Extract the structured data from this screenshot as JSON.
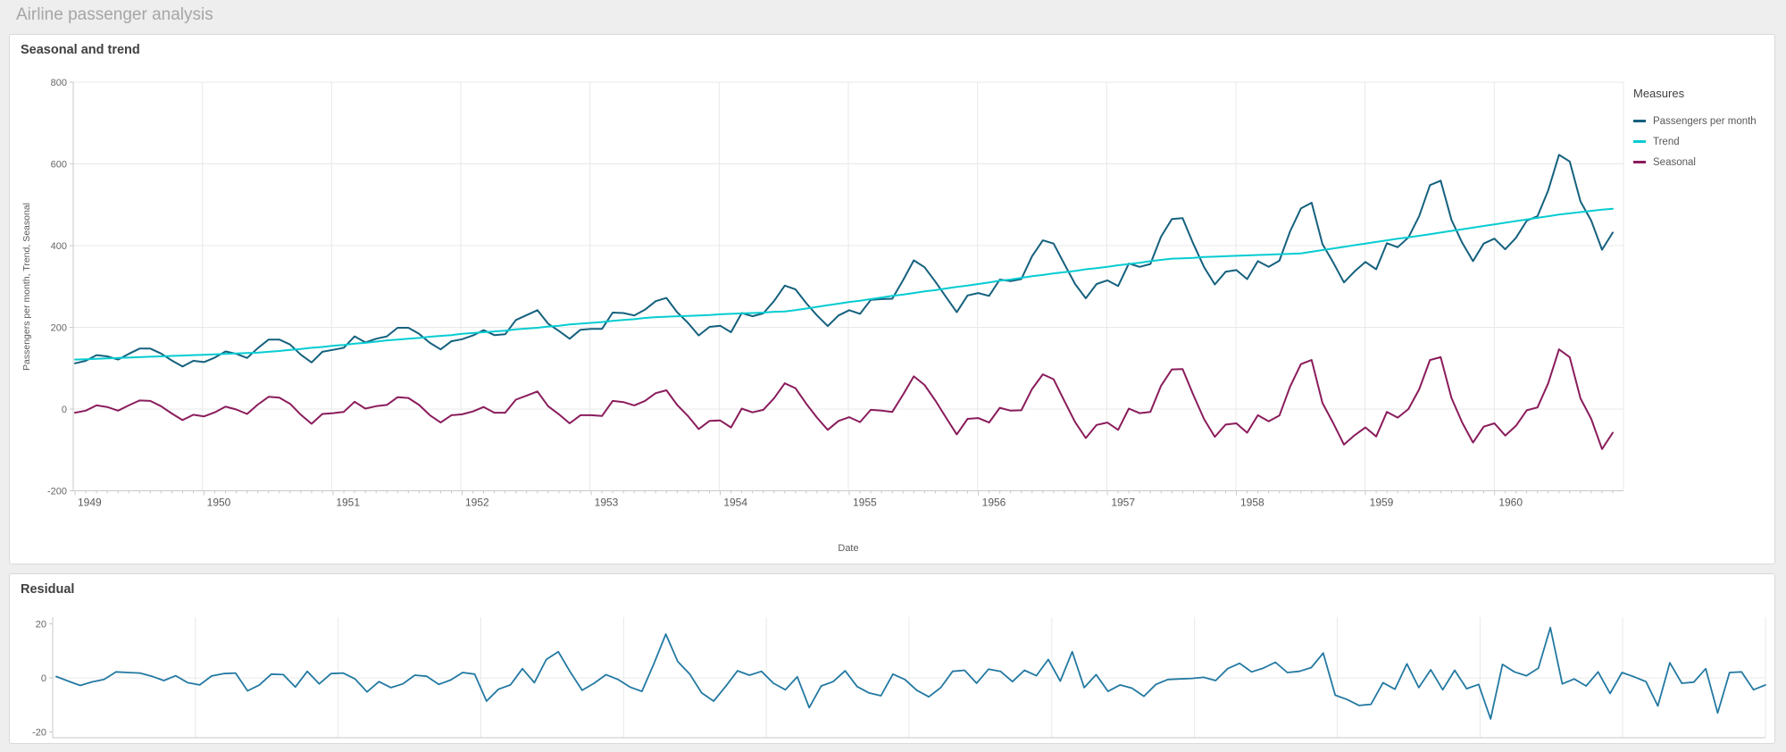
{
  "sheet": {
    "title": "Airline passenger analysis"
  },
  "chart_data": [
    {
      "type": "line",
      "title": "Seasonal and trend",
      "xlabel": "Date",
      "ylabel": "Passengers per month, Trend, Seasonal",
      "legend_title": "Measures",
      "legend_position": "right",
      "grid": true,
      "ylim": [
        -200,
        800
      ],
      "yticks": [
        800,
        600,
        400,
        200,
        0,
        -200
      ],
      "x_years": [
        1949,
        1950,
        1951,
        1952,
        1953,
        1954,
        1955,
        1956,
        1957,
        1958,
        1959,
        1960
      ],
      "points_per_year": 12,
      "series": [
        {
          "name": "Passengers per month",
          "color": "#15617e",
          "values": [
            112,
            118,
            132,
            129,
            121,
            135,
            148,
            148,
            136,
            119,
            104,
            118,
            115,
            126,
            141,
            135,
            125,
            149,
            170,
            170,
            158,
            133,
            114,
            140,
            145,
            150,
            178,
            163,
            172,
            178,
            199,
            199,
            184,
            162,
            146,
            166,
            171,
            180,
            193,
            181,
            183,
            218,
            230,
            242,
            209,
            191,
            172,
            194,
            196,
            196,
            236,
            235,
            229,
            243,
            264,
            272,
            237,
            211,
            180,
            201,
            204,
            188,
            235,
            227,
            234,
            264,
            302,
            293,
            259,
            229,
            203,
            229,
            242,
            233,
            267,
            269,
            270,
            315,
            364,
            347,
            312,
            274,
            237,
            278,
            284,
            277,
            317,
            313,
            318,
            374,
            413,
            405,
            355,
            306,
            271,
            306,
            315,
            301,
            356,
            348,
            355,
            422,
            465,
            467,
            404,
            347,
            305,
            336,
            340,
            318,
            362,
            348,
            363,
            435,
            491,
            505,
            404,
            359,
            310,
            337,
            360,
            342,
            406,
            396,
            420,
            472,
            548,
            559,
            463,
            407,
            362,
            405,
            417,
            391,
            419,
            461,
            472,
            535,
            622,
            606,
            508,
            461,
            390,
            432
          ]
        },
        {
          "name": "Trend",
          "color": "#06ccd2",
          "values": [
            121,
            122,
            123,
            124,
            125,
            126,
            127,
            128,
            129,
            130,
            131,
            132,
            133,
            134,
            135,
            136,
            137,
            138,
            140,
            142,
            145,
            147,
            150,
            152,
            155,
            157,
            160,
            162,
            165,
            168,
            170,
            172,
            174,
            177,
            179,
            181,
            184,
            186,
            188,
            190,
            192,
            195,
            197,
            199,
            202,
            204,
            207,
            209,
            211,
            213,
            216,
            218,
            220,
            223,
            225,
            226,
            227,
            228,
            229,
            230,
            232,
            233,
            234,
            235,
            236,
            238,
            239,
            242,
            246,
            250,
            254,
            258,
            262,
            265,
            269,
            273,
            277,
            280,
            284,
            288,
            291,
            295,
            299,
            302,
            306,
            310,
            314,
            317,
            321,
            325,
            328,
            332,
            335,
            338,
            342,
            345,
            348,
            352,
            355,
            358,
            362,
            365,
            368,
            369,
            370,
            372,
            373,
            374,
            375,
            376,
            377,
            378,
            379,
            380,
            381,
            385,
            389,
            393,
            397,
            401,
            405,
            409,
            413,
            417,
            420,
            424,
            428,
            432,
            436,
            440,
            444,
            448,
            452,
            456,
            460,
            464,
            468,
            472,
            476,
            479,
            482,
            485,
            488,
            490
          ]
        },
        {
          "name": "Seasonal",
          "color": "#8a1c5c",
          "values": [
            -9,
            -4,
            9,
            5,
            -4,
            9,
            21,
            20,
            7,
            -11,
            -27,
            -14,
            -18,
            -8,
            6,
            -1,
            -12,
            11,
            30,
            28,
            13,
            -14,
            -36,
            -12,
            -10,
            -7,
            18,
            1,
            7,
            10,
            29,
            27,
            10,
            -15,
            -33,
            -15,
            -13,
            -6,
            5,
            -9,
            -9,
            23,
            33,
            43,
            7,
            -13,
            -35,
            -15,
            -15,
            -17,
            20,
            17,
            9,
            20,
            39,
            46,
            10,
            -17,
            -49,
            -29,
            -28,
            -45,
            1,
            -8,
            -2,
            26,
            63,
            51,
            13,
            -21,
            -51,
            -29,
            -20,
            -32,
            -2,
            -4,
            -7,
            35,
            80,
            59,
            21,
            -21,
            -62,
            -24,
            -22,
            -33,
            3,
            -4,
            -3,
            49,
            85,
            73,
            20,
            -32,
            -71,
            -39,
            -33,
            -51,
            1,
            -10,
            -7,
            57,
            97,
            98,
            34,
            -25,
            -68,
            -38,
            -35,
            -58,
            -15,
            -30,
            -16,
            55,
            110,
            120,
            15,
            -34,
            -87,
            -64,
            -45,
            -67,
            -7,
            -21,
            0,
            48,
            120,
            127,
            27,
            -33,
            -82,
            -43,
            -35,
            -65,
            -41,
            -3,
            4,
            63,
            146,
            127,
            26,
            -24,
            -98,
            -58
          ]
        }
      ]
    },
    {
      "type": "line",
      "title": "Residual",
      "grid": true,
      "ylim": [
        -22,
        22
      ],
      "yticks": [
        20,
        0,
        -20
      ],
      "x_years": [
        1949,
        1950,
        1951,
        1952,
        1953,
        1954,
        1955,
        1956,
        1957,
        1958,
        1959,
        1960
      ],
      "points_per_year": 12,
      "series": [
        {
          "name": "Residual",
          "color": "#2379a2",
          "values": [
            0.5,
            -1.2,
            -2.8,
            -1.5,
            -0.6,
            2.2,
            2.0,
            1.8,
            0.6,
            -1.0,
            0.8,
            -1.8,
            -2.6,
            0.7,
            1.6,
            1.8,
            -4.8,
            -2.6,
            1.4,
            1.2,
            -3.4,
            2.4,
            -2.2,
            1.6,
            1.8,
            -0.4,
            -5.2,
            -1.4,
            -3.6,
            -2.2,
            1.0,
            0.6,
            -2.4,
            -0.8,
            2.0,
            1.4,
            -8.6,
            -4.2,
            -2.6,
            3.4,
            -1.8,
            6.8,
            9.7,
            2.2,
            -4.6,
            -2.0,
            1.2,
            -0.6,
            -3.4,
            -5.0,
            5.2,
            16.2,
            6.0,
            1.4,
            -5.6,
            -8.6,
            -3.2,
            2.6,
            1.0,
            2.4,
            -2.0,
            -4.4,
            0.4,
            -11.0,
            -3.0,
            -1.4,
            2.6,
            -3.2,
            -5.6,
            -6.6,
            1.4,
            -0.6,
            -4.6,
            -7.0,
            -3.6,
            2.4,
            2.8,
            -2.0,
            3.2,
            2.4,
            -1.4,
            2.8,
            0.8,
            6.8,
            -1.2,
            9.7,
            -3.6,
            1.2,
            -5.0,
            -2.6,
            -3.8,
            -6.8,
            -2.4,
            -0.6,
            -0.4,
            -0.2,
            0.2,
            -1.0,
            3.4,
            5.4,
            2.2,
            3.6,
            5.8,
            2.0,
            2.4,
            3.8,
            9.2,
            -6.4,
            -8.0,
            -10.2,
            -9.8,
            -1.8,
            -4.2,
            5.2,
            -3.6,
            3.0,
            -4.4,
            2.8,
            -4.0,
            -2.4,
            -15.2,
            5.0,
            2.2,
            0.8,
            3.6,
            18.6,
            -2.2,
            -0.4,
            -3.0,
            2.2,
            -5.8,
            2.0,
            0.4,
            -1.4,
            -10.4,
            5.6,
            -2.0,
            -1.6,
            3.4,
            -13.0,
            2.0,
            2.2,
            -4.4,
            -2.6
          ]
        }
      ]
    }
  ]
}
